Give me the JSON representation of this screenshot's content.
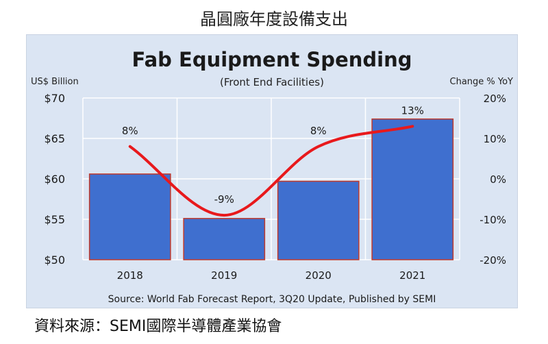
{
  "page_title": "晶圓廠年度設備支出",
  "footer": "資料來源：SEMI國際半導體產業協會",
  "colors": {
    "bar": "#3f6fcf",
    "bar_edge": "#c0392b",
    "line": "#e8191c",
    "panel": "#dbe5f3"
  },
  "chart_data": {
    "type": "bar",
    "title": "Fab Equipment Spending",
    "subtitle": "(Front End Facilities)",
    "ylabel": "US$ Billion",
    "y2label": "Change % YoY",
    "categories": [
      "2018",
      "2019",
      "2020",
      "2021"
    ],
    "values": [
      60.6,
      55.1,
      59.7,
      67.4
    ],
    "ylim": [
      50,
      70
    ],
    "yticks": [
      "$70",
      "$65",
      "$60",
      "$55",
      "$50"
    ],
    "ytick_values": [
      70,
      65,
      60,
      55,
      50
    ],
    "y2lim": [
      -20,
      20
    ],
    "y2ticks": [
      "20%",
      "10%",
      "0%",
      "-10%",
      "-20%"
    ],
    "y2tick_values": [
      20,
      10,
      0,
      -10,
      -20
    ],
    "line_values": [
      8,
      -9,
      8,
      13
    ],
    "line_labels": [
      "8%",
      "-9%",
      "8%",
      "13%"
    ],
    "source": "Source: World Fab Forecast Report, 3Q20 Update, Published by SEMI",
    "grid": true
  }
}
